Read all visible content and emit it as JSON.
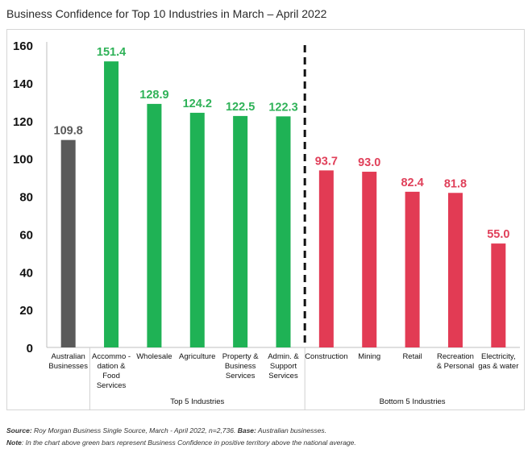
{
  "chart_data": {
    "type": "bar",
    "title": "Business Confidence for Top 10 Industries in March – April 2022",
    "xlabel": "",
    "ylabel": "",
    "ylim": [
      0,
      160
    ],
    "yticks": [
      0,
      20,
      40,
      60,
      80,
      100,
      120,
      140,
      160
    ],
    "categories": [
      "Australian Businesses",
      "Accommo-dation & Food Services",
      "Wholesale",
      "Agriculture",
      "Property & Business Services",
      "Admin. & Support Services",
      "Construction",
      "Mining",
      "Retail",
      "Recreation & Personal",
      "Electricity, gas & water"
    ],
    "category_lines": [
      [
        "Australian",
        "Businesses"
      ],
      [
        "Accommo -",
        "dation &",
        "Food",
        "Services"
      ],
      [
        "Wholesale"
      ],
      [
        "Agriculture"
      ],
      [
        "Property &",
        "Business",
        "Services"
      ],
      [
        "Admin. &",
        "Support",
        "Services"
      ],
      [
        "Construction"
      ],
      [
        "Mining"
      ],
      [
        "Retail"
      ],
      [
        "Recreation",
        "& Personal"
      ],
      [
        "Electricity,",
        "gas & water"
      ]
    ],
    "values": [
      109.8,
      151.4,
      128.9,
      124.2,
      122.5,
      122.3,
      93.7,
      93.0,
      82.4,
      81.8,
      55.0
    ],
    "value_labels": [
      "109.8",
      "151.4",
      "128.9",
      "124.2",
      "122.5",
      "122.3",
      "93.7",
      "93.0",
      "82.4",
      "81.8",
      "55.0"
    ],
    "groups": [
      {
        "name": "Top 5 Industries",
        "start": 1,
        "end": 5
      },
      {
        "name": "Bottom 5 Industries",
        "start": 6,
        "end": 10
      }
    ],
    "colors": {
      "national": "#5a5a5a",
      "top": "#1fb255",
      "bottom": "#e23b54",
      "national_label": "#595959",
      "top_label": "#2fb258",
      "bottom_label": "#e0405a"
    },
    "divider": "dashed line between Top 5 and Bottom 5"
  },
  "footer": {
    "source_label": "Source:",
    "source_text": " Roy Morgan Business Single Source, March - April 2022, n=2,736. ",
    "base_label": "Base:",
    "base_text": " Australian businesses.",
    "note_label": "Note",
    "note_text": ": In the chart above green bars represent Business Confidence in positive territory above the national average."
  }
}
